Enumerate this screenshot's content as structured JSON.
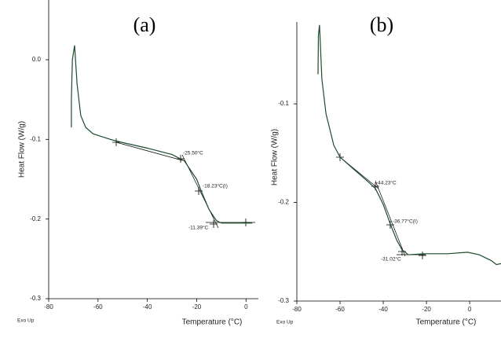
{
  "chart_data": [
    {
      "type": "line",
      "title": "(a)",
      "x_label": "Temperature (°C)",
      "y_label": "Heat Flow (W/g)",
      "note": "Exo Up",
      "annotations": [
        "-25.50°C",
        "-18.23°C(I)",
        "-11.39°C"
      ],
      "color": "#1d4a2c",
      "x": [
        -70.8,
        -70.8,
        -70.4,
        -69.5,
        -68.5,
        -67,
        -65,
        -62,
        -55,
        -50,
        -40,
        -30,
        -25,
        -20,
        -18,
        -15,
        -12,
        -10,
        0,
        2.5
      ],
      "values": [
        -0.085,
        -0.05,
        0.0,
        0.018,
        -0.03,
        -0.07,
        -0.085,
        -0.093,
        -0.1,
        -0.104,
        -0.111,
        -0.119,
        -0.127,
        -0.15,
        -0.166,
        -0.188,
        -0.202,
        -0.205,
        -0.205,
        -0.205
      ],
      "xlim": [
        -80,
        5
      ],
      "ylim": [
        -0.3,
        0.075
      ],
      "xticks": [
        -80,
        -60,
        -40,
        -20,
        0
      ],
      "yticks": [
        {
          "value": 0,
          "label": "0.0"
        },
        -0.1,
        -0.2,
        -0.3
      ]
    },
    {
      "type": "line",
      "title": "(b)",
      "x_label": "Temperature (°C)",
      "y_label": "Heat Flow (W/g)",
      "note": "Exo Up",
      "annotations": [
        "-44.23°C",
        "-36.77°C(I)",
        "-31.02°C"
      ],
      "color": "#1d4a2c",
      "x": [
        -70.2,
        -70.0,
        -69.5,
        -68.4,
        -66.5,
        -62.9,
        -60,
        -53.8,
        -46.5,
        -43.6,
        -40,
        -36.7,
        -33.8,
        -31.3,
        -28.4,
        -21,
        -10.2,
        -1,
        4.4,
        10,
        12.4,
        14.5
      ],
      "values": [
        -0.07,
        -0.03,
        -0.02,
        -0.075,
        -0.11,
        -0.142,
        -0.154,
        -0.166,
        -0.18,
        -0.186,
        -0.202,
        -0.222,
        -0.238,
        -0.248,
        -0.253,
        -0.252,
        -0.252,
        -0.2505,
        -0.253,
        -0.259,
        -0.263,
        -0.262
      ],
      "xlim": [
        -80,
        14.5
      ],
      "ylim": [
        -0.3,
        -0.017
      ],
      "xticks": [
        -80,
        -60,
        -40,
        -20,
        0
      ],
      "yticks": [
        -0.1,
        -0.2,
        -0.3
      ]
    }
  ]
}
